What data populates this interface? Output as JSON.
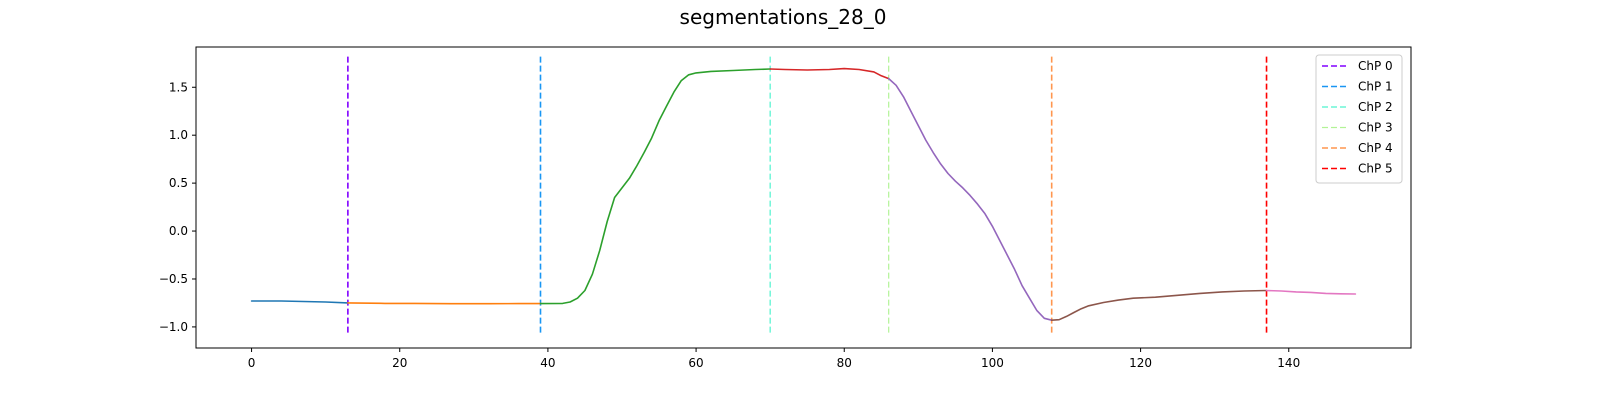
{
  "chart_data": {
    "type": "line",
    "title": "segmentations_28_0",
    "xlabel": "",
    "ylabel": "",
    "xlim": [
      -7.5,
      156.5
    ],
    "ylim": [
      -1.22,
      1.92
    ],
    "xticks": [
      0,
      20,
      40,
      60,
      80,
      100,
      120,
      140
    ],
    "yticks": [
      -1.0,
      -0.5,
      0.0,
      0.5,
      1.0,
      1.5
    ],
    "ytick_labels": [
      "−1.0",
      "−0.5",
      "0.0",
      "0.5",
      "1.0",
      "1.5"
    ],
    "grid": false,
    "legend_position": "top-right",
    "segments": [
      {
        "color": "#1f77b4",
        "points": [
          [
            0,
            -0.73
          ],
          [
            4,
            -0.73
          ],
          [
            7,
            -0.735
          ],
          [
            10,
            -0.74
          ],
          [
            13,
            -0.75
          ]
        ]
      },
      {
        "color": "#ff7f0e",
        "points": [
          [
            13,
            -0.75
          ],
          [
            18,
            -0.755
          ],
          [
            22,
            -0.755
          ],
          [
            27,
            -0.758
          ],
          [
            32,
            -0.758
          ],
          [
            36,
            -0.757
          ],
          [
            39,
            -0.757
          ]
        ]
      },
      {
        "color": "#2ca02c",
        "points": [
          [
            39,
            -0.757
          ],
          [
            42,
            -0.755
          ],
          [
            43,
            -0.74
          ],
          [
            44,
            -0.7
          ],
          [
            45,
            -0.62
          ],
          [
            46,
            -0.45
          ],
          [
            47,
            -0.2
          ],
          [
            48,
            0.1
          ],
          [
            49,
            0.35
          ],
          [
            50,
            0.45
          ],
          [
            51,
            0.55
          ],
          [
            52,
            0.68
          ],
          [
            53,
            0.82
          ],
          [
            54,
            0.97
          ],
          [
            55,
            1.15
          ],
          [
            56,
            1.3
          ],
          [
            57,
            1.45
          ],
          [
            58,
            1.57
          ],
          [
            59,
            1.63
          ],
          [
            60,
            1.65
          ],
          [
            62,
            1.665
          ],
          [
            65,
            1.675
          ],
          [
            68,
            1.685
          ],
          [
            70,
            1.69
          ]
        ]
      },
      {
        "color": "#d62728",
        "points": [
          [
            70,
            1.69
          ],
          [
            72,
            1.685
          ],
          [
            75,
            1.68
          ],
          [
            78,
            1.685
          ],
          [
            80,
            1.695
          ],
          [
            82,
            1.685
          ],
          [
            84,
            1.66
          ],
          [
            85,
            1.62
          ],
          [
            86,
            1.59
          ]
        ]
      },
      {
        "color": "#9467bd",
        "points": [
          [
            86,
            1.59
          ],
          [
            87,
            1.52
          ],
          [
            88,
            1.4
          ],
          [
            89,
            1.25
          ],
          [
            90,
            1.1
          ],
          [
            91,
            0.95
          ],
          [
            92,
            0.82
          ],
          [
            93,
            0.7
          ],
          [
            94,
            0.6
          ],
          [
            95,
            0.52
          ],
          [
            96,
            0.45
          ],
          [
            97,
            0.37
          ],
          [
            98,
            0.28
          ],
          [
            99,
            0.18
          ],
          [
            100,
            0.05
          ],
          [
            101,
            -0.1
          ],
          [
            102,
            -0.25
          ],
          [
            103,
            -0.4
          ],
          [
            104,
            -0.57
          ],
          [
            105,
            -0.7
          ],
          [
            106,
            -0.83
          ],
          [
            107,
            -0.91
          ],
          [
            108,
            -0.93
          ]
        ]
      },
      {
        "color": "#8c564b",
        "points": [
          [
            108,
            -0.93
          ],
          [
            109,
            -0.925
          ],
          [
            110,
            -0.89
          ],
          [
            111,
            -0.85
          ],
          [
            112,
            -0.81
          ],
          [
            113,
            -0.78
          ],
          [
            115,
            -0.745
          ],
          [
            117,
            -0.72
          ],
          [
            119,
            -0.7
          ],
          [
            122,
            -0.69
          ],
          [
            125,
            -0.67
          ],
          [
            128,
            -0.65
          ],
          [
            131,
            -0.635
          ],
          [
            134,
            -0.625
          ],
          [
            137,
            -0.62
          ]
        ]
      },
      {
        "color": "#e377c2",
        "points": [
          [
            137,
            -0.62
          ],
          [
            139,
            -0.625
          ],
          [
            141,
            -0.635
          ],
          [
            143,
            -0.64
          ],
          [
            145,
            -0.65
          ],
          [
            147,
            -0.655
          ],
          [
            149,
            -0.657
          ]
        ]
      }
    ],
    "changepoints": [
      {
        "name": "ChP 0",
        "x": 13,
        "color": "#8000ff",
        "width": 1.6
      },
      {
        "name": "ChP 1",
        "x": 39,
        "color": "#1996f3",
        "width": 1.6
      },
      {
        "name": "ChP 2",
        "x": 70,
        "color": "#4df3ce",
        "width": 1.2
      },
      {
        "name": "ChP 3",
        "x": 86,
        "color": "#b2f396",
        "width": 1.2
      },
      {
        "name": "ChP 4",
        "x": 108,
        "color": "#ff964f",
        "width": 1.6
      },
      {
        "name": "ChP 5",
        "x": 137,
        "color": "#ff0000",
        "width": 1.6
      }
    ],
    "changepoint_ymin": -1.07,
    "changepoint_ymax": 1.82
  }
}
